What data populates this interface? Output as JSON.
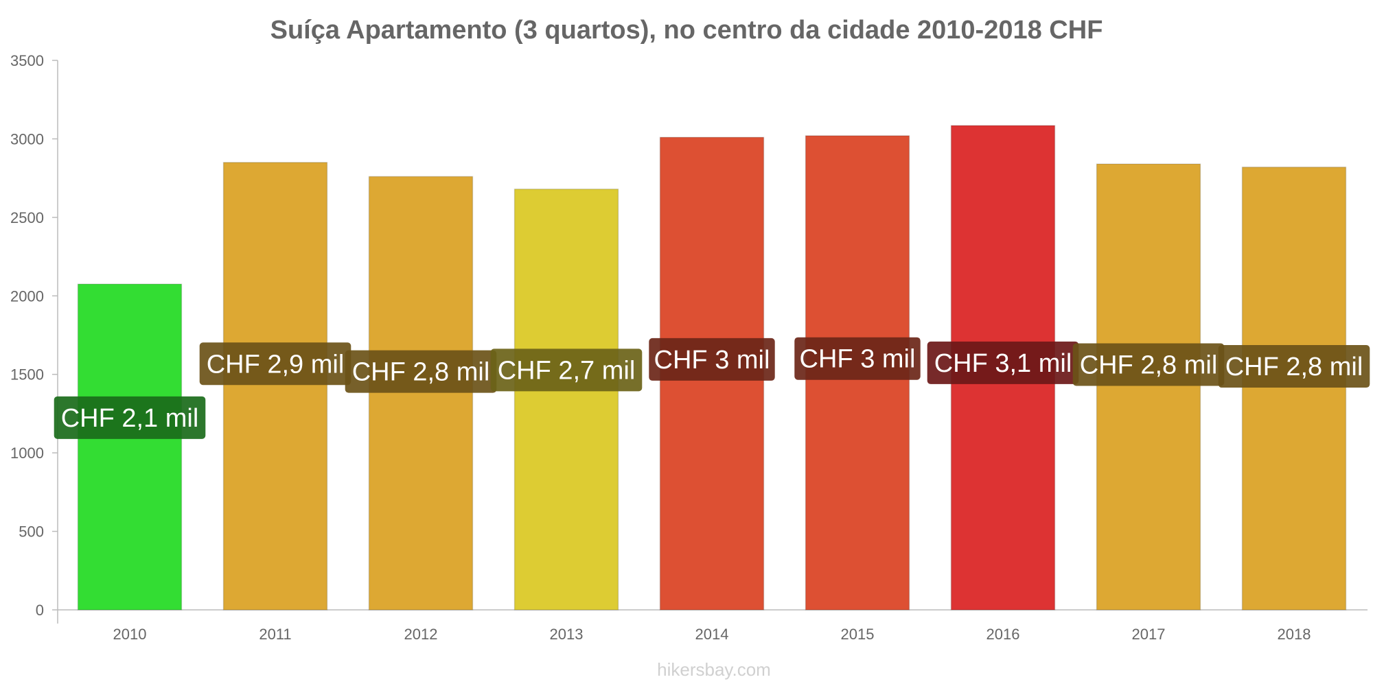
{
  "chart_data": {
    "type": "bar",
    "title": "Suíça Apartamento (3 quartos), no centro da cidade 2010-2018 CHF",
    "xlabel": "",
    "ylabel": "",
    "categories": [
      "2010",
      "2011",
      "2012",
      "2013",
      "2014",
      "2015",
      "2016",
      "2017",
      "2018"
    ],
    "values": [
      2075,
      2850,
      2760,
      2680,
      3010,
      3020,
      3085,
      2840,
      2820
    ],
    "data_labels": [
      "CHF 2,1 mil",
      "CHF 2,9 mil",
      "CHF 2,8 mil",
      "CHF 2,7 mil",
      "CHF 3 mil",
      "CHF 3 mil",
      "CHF 3,1 mil",
      "CHF 2,8 mil",
      "CHF 2,8 mil"
    ],
    "bar_colors": [
      "#33dd33",
      "#dda833",
      "#dda833",
      "#ddcc33",
      "#dd5033",
      "#dd5033",
      "#dd3333",
      "#dda833",
      "#dda833"
    ],
    "label_colors": [
      "#1a6b1a",
      "#6b5218",
      "#6b5218",
      "#6b6318",
      "#6b2618",
      "#6b2618",
      "#6b1818",
      "#6b5218",
      "#6b5218"
    ],
    "ylim": [
      0,
      3500
    ],
    "yticks": [
      "0",
      "500",
      "1000",
      "1500",
      "2000",
      "2500",
      "3000",
      "3500"
    ],
    "grid": false,
    "legend": "none"
  },
  "footer": {
    "source": "hikersbay.com"
  }
}
